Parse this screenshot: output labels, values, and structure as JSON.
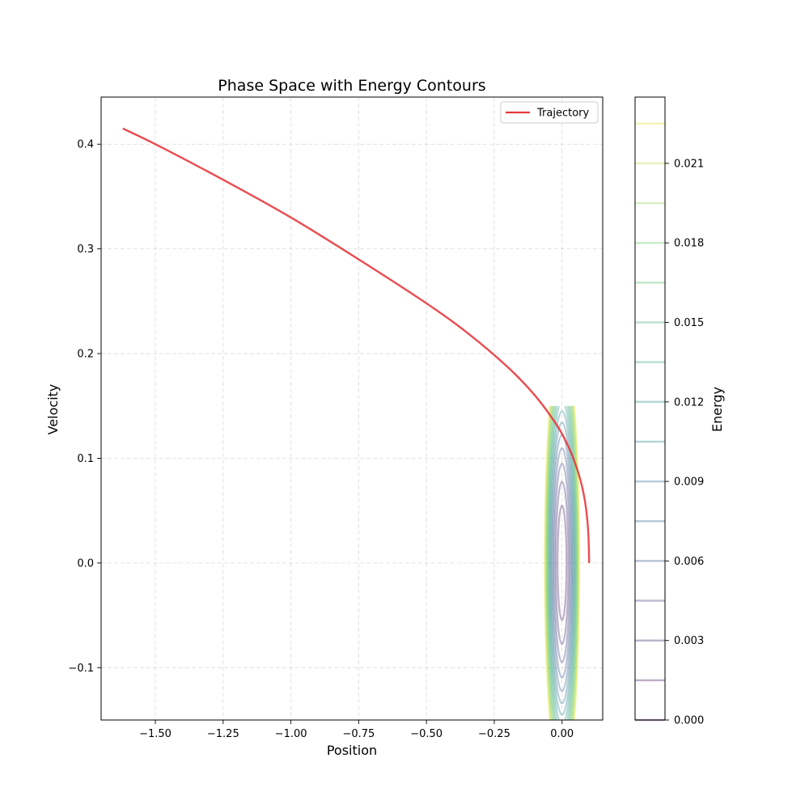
{
  "chart_data": {
    "type": "line",
    "title": "Phase Space with Energy Contours",
    "xlabel": "Position",
    "ylabel": "Velocity",
    "xlim": [
      -1.7,
      0.15
    ],
    "ylim": [
      -0.15,
      0.445
    ],
    "x_ticks": [
      -1.5,
      -1.25,
      -1.0,
      -0.75,
      -0.5,
      -0.25,
      0.0
    ],
    "x_tick_labels": [
      "−1.50",
      "−1.25",
      "−1.00",
      "−0.75",
      "−0.50",
      "−0.25",
      "0.00"
    ],
    "y_ticks": [
      -0.1,
      0.0,
      0.1,
      0.2,
      0.3,
      0.4
    ],
    "y_tick_labels": [
      "−0.1",
      "0.0",
      "0.1",
      "0.2",
      "0.3",
      "0.4"
    ],
    "grid": true,
    "legend": {
      "position": "top-right",
      "entries": [
        "Trajectory"
      ]
    },
    "series": [
      {
        "name": "Trajectory",
        "color": "#e8383d",
        "x": [
          0.1,
          0.097,
          0.088,
          0.073,
          0.05,
          0.02,
          -0.02,
          -0.1,
          -0.2,
          -0.35,
          -0.5,
          -0.75,
          -1.0,
          -1.25,
          -1.5,
          -1.62
        ],
        "y": [
          0.0,
          0.028,
          0.053,
          0.074,
          0.094,
          0.113,
          0.132,
          0.16,
          0.187,
          0.22,
          0.248,
          0.29,
          0.33,
          0.366,
          0.4,
          0.415
        ]
      }
    ],
    "contours": {
      "x_range": [
        -0.15,
        0.15
      ],
      "y_range": [
        -0.15,
        0.15
      ],
      "energy_formula": "E = 0.5*v^2 + 0.5*x^2*(0.5/0.15)^2",
      "levels": [
        0.0015,
        0.003,
        0.0045,
        0.006,
        0.0075,
        0.009,
        0.0105,
        0.012,
        0.0135,
        0.015,
        0.0165,
        0.018,
        0.0195,
        0.021,
        0.0225
      ]
    },
    "colorbar": {
      "label": "Energy",
      "min": 0.0,
      "max": 0.0235,
      "ticks": [
        0.0,
        0.003,
        0.006,
        0.009,
        0.012,
        0.015,
        0.018,
        0.021
      ],
      "tick_labels": [
        "0.000",
        "0.003",
        "0.006",
        "0.009",
        "0.012",
        "0.015",
        "0.018",
        "0.021"
      ],
      "colormap": "viridis",
      "alpha": 0.35
    }
  }
}
